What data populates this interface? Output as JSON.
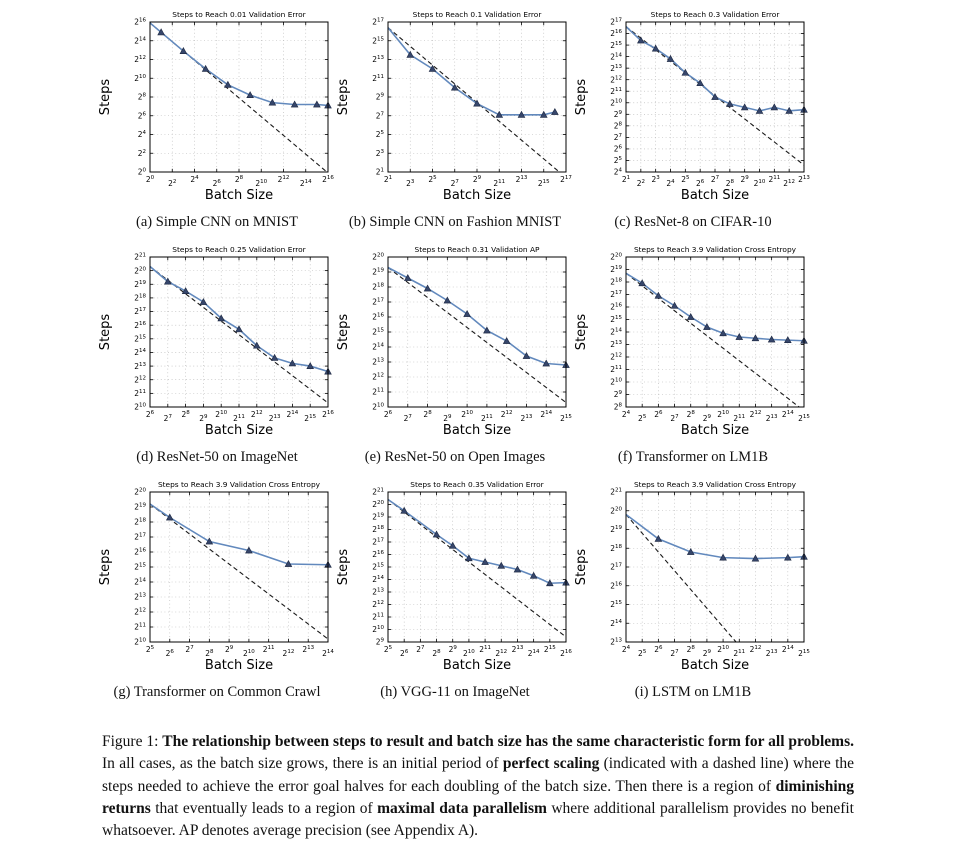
{
  "colors": {
    "curve": "#6289bd",
    "marker": "#36466b",
    "marker_edge": "#1c2740",
    "dash": "#1a1a1a",
    "grid": "#b5b5b5",
    "axis": "#000000",
    "page_bg": "#ffffff"
  },
  "figure_caption": {
    "segments": [
      {
        "bold": false,
        "text": "Figure 1: "
      },
      {
        "bold": true,
        "text": "The relationship between steps to result and batch size has the same characteristic form for all problems."
      },
      {
        "bold": false,
        "text": " In all cases, as the batch size grows, there is an initial period of "
      },
      {
        "bold": true,
        "text": "perfect scaling"
      },
      {
        "bold": false,
        "text": " (indicated with a dashed line) where the steps needed to achieve the error goal halves for each doubling of the batch size. Then there is a region of "
      },
      {
        "bold": true,
        "text": "diminishing returns"
      },
      {
        "bold": false,
        "text": " that eventually leads to a region of "
      },
      {
        "bold": true,
        "text": "maximal data parallelism"
      },
      {
        "bold": false,
        "text": " where additional parallelism provides no benefit whatsoever. AP denotes average precision (see Appendix A)."
      }
    ]
  },
  "chart_data": [
    {
      "id": "a",
      "type": "line",
      "title": "Steps to Reach 0.01 Validation Error",
      "caption": "(a) Simple CNN on MNIST",
      "xlabel": "Batch Size",
      "ylabel": "Steps",
      "scale": "log2-exponent",
      "xlim": [
        0,
        16
      ],
      "ylim": [
        0,
        16
      ],
      "xstep": 2,
      "ystep": 2,
      "dash": [
        [
          0,
          15.9
        ],
        [
          15.9,
          0
        ]
      ],
      "curve": [
        [
          0,
          15.9
        ],
        [
          1,
          14.9
        ],
        [
          3,
          12.9
        ],
        [
          5,
          11.0
        ],
        [
          7,
          9.3
        ],
        [
          9,
          8.2
        ],
        [
          11,
          7.4
        ],
        [
          13,
          7.2
        ],
        [
          15,
          7.2
        ],
        [
          16,
          7.1
        ]
      ],
      "marker_start": 1
    },
    {
      "id": "b",
      "type": "line",
      "title": "Steps to Reach 0.1 Validation Error",
      "caption": "(b) Simple CNN on Fashion MNIST",
      "xlabel": "Batch Size",
      "ylabel": "Steps",
      "scale": "log2-exponent",
      "xlim": [
        1,
        17
      ],
      "ylim": [
        1,
        17
      ],
      "xstep": 2,
      "ystep": 2,
      "dash": [
        [
          1,
          16.4
        ],
        [
          16.4,
          1
        ]
      ],
      "curve": [
        [
          1,
          16.4
        ],
        [
          3,
          13.5
        ],
        [
          5,
          12.0
        ],
        [
          7,
          10.0
        ],
        [
          9,
          8.3
        ],
        [
          11,
          7.1
        ],
        [
          13,
          7.1
        ],
        [
          15,
          7.1
        ],
        [
          16,
          7.4
        ]
      ],
      "marker_start": 1
    },
    {
      "id": "c",
      "type": "line",
      "title": "Steps to Reach 0.3 Validation Error",
      "caption": "(c) ResNet-8 on CIFAR-10",
      "xlabel": "Batch Size",
      "ylabel": "Steps",
      "scale": "log2-exponent",
      "xlim": [
        1,
        13
      ],
      "ylim": [
        4,
        17
      ],
      "xstep": 1,
      "ystep": 1,
      "dash": [
        [
          1,
          16.6
        ],
        [
          13,
          4.6
        ]
      ],
      "curve": [
        [
          1,
          16.6
        ],
        [
          2,
          15.4
        ],
        [
          3,
          14.7
        ],
        [
          4,
          13.8
        ],
        [
          5,
          12.6
        ],
        [
          6,
          11.7
        ],
        [
          7,
          10.5
        ],
        [
          8,
          9.9
        ],
        [
          9,
          9.6
        ],
        [
          10,
          9.3
        ],
        [
          11,
          9.6
        ],
        [
          12,
          9.3
        ],
        [
          13,
          9.4
        ]
      ],
      "marker_start": 1
    },
    {
      "id": "d",
      "type": "line",
      "title": "Steps to Reach 0.25 Validation Error",
      "caption": "(d) ResNet-50 on ImageNet",
      "xlabel": "Batch Size",
      "ylabel": "Steps",
      "scale": "log2-exponent",
      "xlim": [
        6,
        16
      ],
      "ylim": [
        10,
        21
      ],
      "xstep": 1,
      "ystep": 1,
      "dash": [
        [
          6,
          20.3
        ],
        [
          16,
          10.3
        ]
      ],
      "curve": [
        [
          6,
          20.3
        ],
        [
          7,
          19.2
        ],
        [
          8,
          18.5
        ],
        [
          9,
          17.7
        ],
        [
          10,
          16.5
        ],
        [
          11,
          15.7
        ],
        [
          12,
          14.5
        ],
        [
          13,
          13.6
        ],
        [
          14,
          13.2
        ],
        [
          15,
          13.0
        ],
        [
          16,
          12.6
        ]
      ],
      "marker_start": 1
    },
    {
      "id": "e",
      "type": "line",
      "title": "Steps to Reach 0.31 Validation AP",
      "caption": "(e) ResNet-50 on Open Images",
      "xlabel": "Batch Size",
      "ylabel": "Steps",
      "scale": "log2-exponent",
      "xlim": [
        6,
        15
      ],
      "ylim": [
        10,
        20
      ],
      "xstep": 1,
      "ystep": 1,
      "dash": [
        [
          6,
          19.3
        ],
        [
          15,
          10.3
        ]
      ],
      "curve": [
        [
          6,
          19.3
        ],
        [
          7,
          18.6
        ],
        [
          8,
          17.9
        ],
        [
          9,
          17.1
        ],
        [
          10,
          16.2
        ],
        [
          11,
          15.1
        ],
        [
          12,
          14.4
        ],
        [
          13,
          13.4
        ],
        [
          14,
          12.9
        ],
        [
          15,
          12.8
        ]
      ],
      "marker_start": 1
    },
    {
      "id": "f",
      "type": "line",
      "title": "Steps to Reach 3.9 Validation Cross Entropy",
      "caption": "(f) Transformer on LM1B",
      "xlabel": "Batch Size",
      "ylabel": "Steps",
      "scale": "log2-exponent",
      "xlim": [
        4,
        15
      ],
      "ylim": [
        8,
        20
      ],
      "xstep": 1,
      "ystep": 1,
      "dash": [
        [
          4,
          18.7
        ],
        [
          14.7,
          8
        ]
      ],
      "curve": [
        [
          4,
          18.7
        ],
        [
          5,
          17.9
        ],
        [
          6,
          16.9
        ],
        [
          7,
          16.1
        ],
        [
          8,
          15.2
        ],
        [
          9,
          14.4
        ],
        [
          10,
          13.9
        ],
        [
          11,
          13.6
        ],
        [
          12,
          13.5
        ],
        [
          13,
          13.4
        ],
        [
          14,
          13.35
        ],
        [
          15,
          13.3
        ]
      ],
      "marker_start": 1
    },
    {
      "id": "g",
      "type": "line",
      "title": "Steps to Reach 3.9 Validation Cross Entropy",
      "caption": "(g) Transformer on Common Crawl",
      "xlabel": "Batch Size",
      "ylabel": "Steps",
      "scale": "log2-exponent",
      "xlim": [
        5,
        14
      ],
      "ylim": [
        10,
        20
      ],
      "xstep": 1,
      "ystep": 1,
      "dash": [
        [
          5,
          19.2
        ],
        [
          14,
          10.2
        ]
      ],
      "curve": [
        [
          5,
          19.2
        ],
        [
          6,
          18.3
        ],
        [
          8,
          16.7
        ],
        [
          10,
          16.1
        ],
        [
          12,
          15.2
        ],
        [
          14,
          15.15
        ]
      ],
      "marker_start": 1
    },
    {
      "id": "h",
      "type": "line",
      "title": "Steps to Reach 0.35 Validation Error",
      "caption": "(h) VGG-11 on ImageNet",
      "xlabel": "Batch Size",
      "ylabel": "Steps",
      "scale": "log2-exponent",
      "xlim": [
        5,
        16
      ],
      "ylim": [
        9,
        21
      ],
      "xstep": 1,
      "ystep": 1,
      "dash": [
        [
          5,
          20.4
        ],
        [
          16,
          9.4
        ]
      ],
      "curve": [
        [
          5,
          20.4
        ],
        [
          6,
          19.5
        ],
        [
          8,
          17.6
        ],
        [
          9,
          16.7
        ],
        [
          10,
          15.7
        ],
        [
          11,
          15.4
        ],
        [
          12,
          15.1
        ],
        [
          13,
          14.8
        ],
        [
          14,
          14.3
        ],
        [
          15,
          13.7
        ],
        [
          16,
          13.75
        ]
      ],
      "marker_start": 1
    },
    {
      "id": "i",
      "type": "line",
      "title": "Steps to Reach 3.9 Validation Cross Entropy",
      "caption": "(i) LSTM on LM1B",
      "xlabel": "Batch Size",
      "ylabel": "Steps",
      "scale": "log2-exponent",
      "xlim": [
        4,
        15
      ],
      "ylim": [
        13,
        21
      ],
      "xstep": 1,
      "ystep": 1,
      "dash": [
        [
          4,
          19.8
        ],
        [
          10.8,
          13
        ]
      ],
      "curve": [
        [
          4,
          19.8
        ],
        [
          6,
          18.5
        ],
        [
          8,
          17.8
        ],
        [
          10,
          17.5
        ],
        [
          12,
          17.45
        ],
        [
          14,
          17.5
        ],
        [
          15,
          17.55
        ]
      ],
      "marker_start": 1
    }
  ]
}
